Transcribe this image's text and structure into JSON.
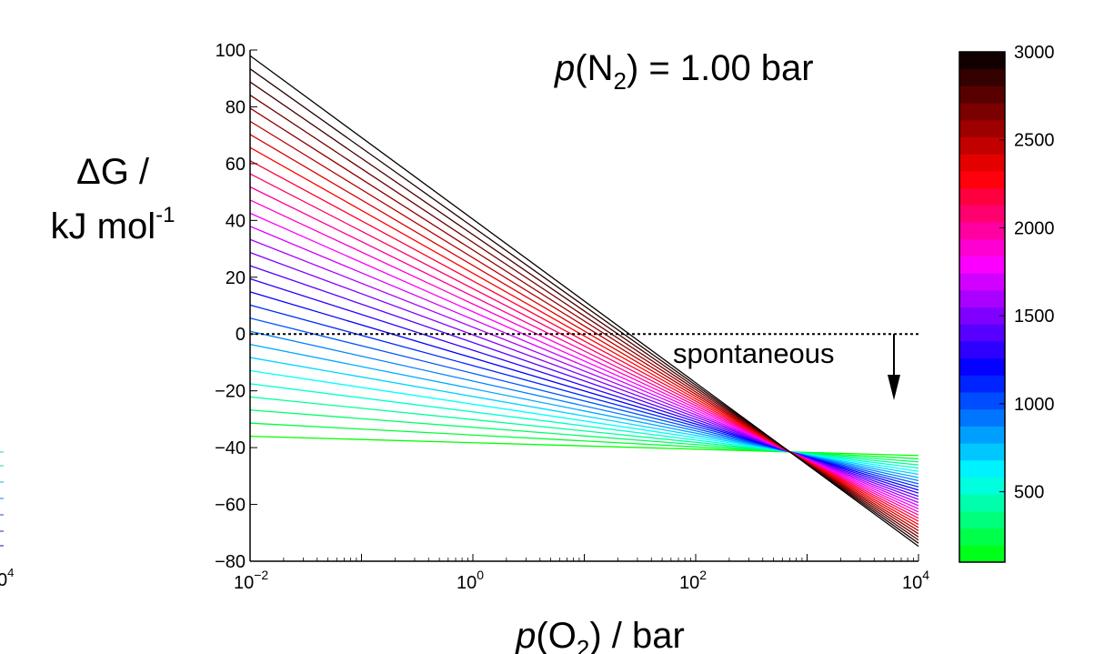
{
  "chart_data": {
    "type": "line",
    "title": "p(N₂) = 1.00 bar",
    "title_parts": {
      "prefix": "p",
      "open": "(N",
      "sub": "2",
      "rest": ") = 1.00 bar"
    },
    "xlabel": "p(O₂) / bar",
    "xlabel_parts": {
      "prefix": "p",
      "open": "(O",
      "sub": "2",
      "rest": ") / bar"
    },
    "ylabel": "ΔG / kJ mol-1",
    "ylabel_parts": {
      "line1": "ΔG /",
      "line2_main": "kJ mol",
      "line2_sup": "-1"
    },
    "x_scale": "log",
    "xlim": [
      0.01,
      10000
    ],
    "ylim": [
      -80,
      100
    ],
    "x_ticks": [
      {
        "value": 0.01,
        "base": "10",
        "exp": "−2"
      },
      {
        "value": 1,
        "base": "10",
        "exp": "0"
      },
      {
        "value": 100,
        "base": "10",
        "exp": "2"
      },
      {
        "value": 10000,
        "base": "10",
        "exp": "4"
      }
    ],
    "y_ticks": [
      {
        "value": 100,
        "label": "100"
      },
      {
        "value": 80,
        "label": "80"
      },
      {
        "value": 60,
        "label": "60"
      },
      {
        "value": 40,
        "label": "40"
      },
      {
        "value": 20,
        "label": "20"
      },
      {
        "value": 0,
        "label": "0"
      },
      {
        "value": -20,
        "label": "−20"
      },
      {
        "value": -40,
        "label": "−40"
      },
      {
        "value": -60,
        "label": "−60"
      },
      {
        "value": -80,
        "label": "−80"
      }
    ],
    "reference_line": {
      "y": 0,
      "style": "dotted"
    },
    "annotation": {
      "text": "spontaneous",
      "arrow": "down"
    },
    "series_rule": {
      "description": "One straight line per temperature; all lines pass through a common point.",
      "temperatures": [
        100,
        3000,
        100
      ],
      "x_common": 700,
      "y_common": -41.5,
      "y_at_xmin_T100": -36,
      "y_at_xmin_T3000": 98
    },
    "colorbar": {
      "label_ticks": [
        {
          "value": 500,
          "label": "500"
        },
        {
          "value": 1000,
          "label": "1000"
        },
        {
          "value": 1500,
          "label": "1500"
        },
        {
          "value": 2000,
          "label": "2000"
        },
        {
          "value": 2500,
          "label": "2500"
        },
        {
          "value": 3000,
          "label": "3000"
        }
      ],
      "range": [
        100,
        3000
      ],
      "colormap_stops": [
        {
          "t": 100,
          "color": "#00ff00"
        },
        {
          "t": 600,
          "color": "#00ffff"
        },
        {
          "t": 1200,
          "color": "#0000ff"
        },
        {
          "t": 1800,
          "color": "#ff00ff"
        },
        {
          "t": 2300,
          "color": "#ff0000"
        },
        {
          "t": 3000,
          "color": "#000000"
        }
      ]
    },
    "edge_fragment_label": {
      "base": "0",
      "exp": "4"
    }
  }
}
